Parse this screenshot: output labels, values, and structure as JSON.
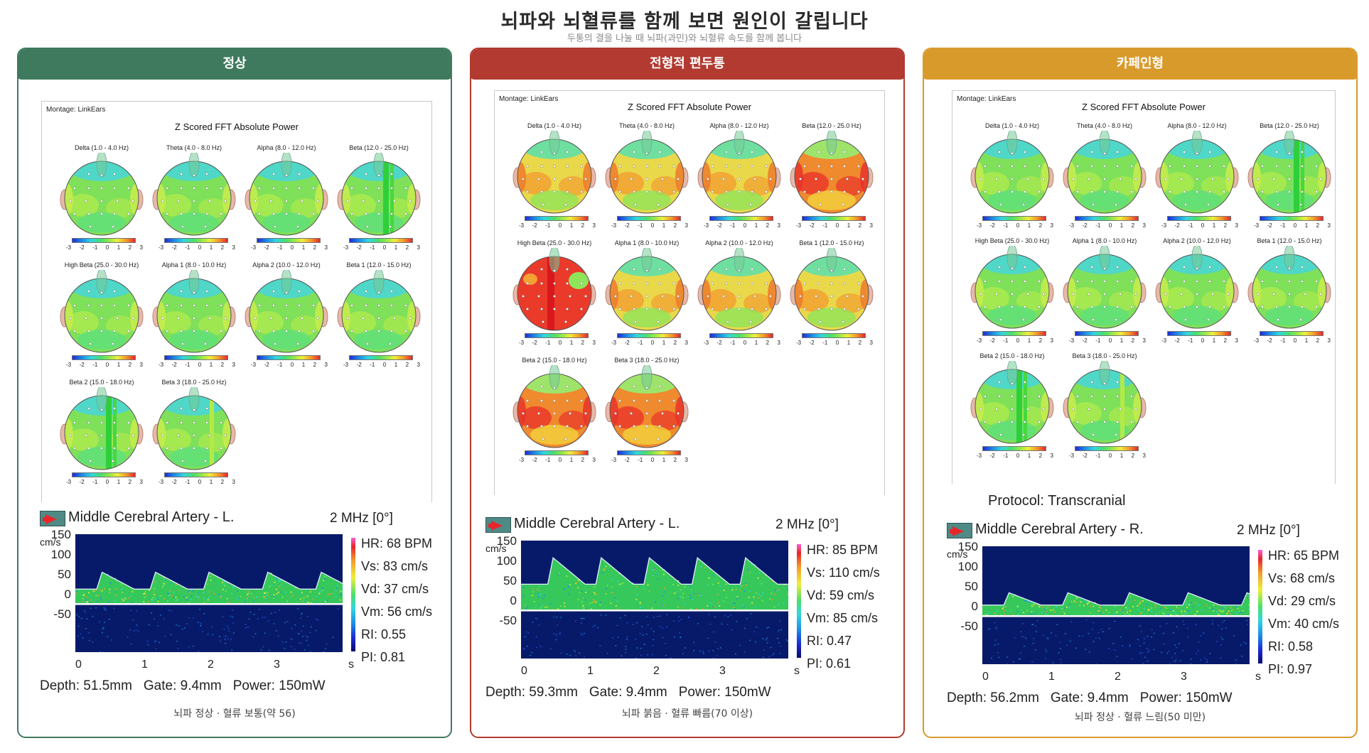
{
  "title": "뇌파와 뇌혈류를 함께 보면 원인이 갈립니다",
  "subtitle": "두통의 결을 나눌 때 뇌파(과민)와 뇌혈류 속도를 함께 봅니다",
  "colors": {
    "normal": "#3f7a5e",
    "migraine": "#b23a30",
    "caffeine": "#d99a2c"
  },
  "qeeg_common": {
    "montage": "Montage:  LinkEars",
    "fft_title": "Z Scored FFT Absolute Power",
    "scale_ticks": [
      "-3",
      "-2",
      "-1",
      "0",
      "1",
      "2",
      "3"
    ],
    "band_labels": [
      "Delta (1.0 - 4.0 Hz)",
      "Theta (4.0 - 8.0 Hz)",
      "Alpha (8.0 - 12.0 Hz)",
      "Beta (12.0 - 25.0 Hz)",
      "High Beta (25.0 - 30.0 Hz)",
      "Alpha 1 (8.0 - 10.0 Hz)",
      "Alpha 2 (10.0 - 12.0 Hz)",
      "Beta 1 (12.0 - 15.0 Hz)",
      "Beta 2 (15.0 - 18.0 Hz)",
      "Beta 3 (18.0 - 25.0 Hz)"
    ]
  },
  "tcd_common": {
    "freq": "2 MHz [0°]",
    "y_unit": "cm/s",
    "y_ticks": [
      "150",
      "100",
      "50",
      "0",
      "-50"
    ],
    "x_ticks": [
      "0",
      "1",
      "2",
      "3",
      "s"
    ]
  },
  "panels": [
    {
      "header": "정상",
      "artery": "Middle Cerebral Artery - L.",
      "protocol": "",
      "stats": {
        "hr": "HR: 68 BPM",
        "vs": "Vs: 83 cm/s",
        "vd": "Vd: 37 cm/s",
        "vm": "Vm: 56 cm/s",
        "ri": "RI: 0.55",
        "pi": "PI: 0.81"
      },
      "depth": "Depth: 51.5mm",
      "gate": "Gate: 9.4mm",
      "power": "Power: 150mW",
      "caption": "뇌파 정상 · 혈류 보통(약 56)",
      "maps": [
        "normal",
        "normal",
        "normal",
        "stripe",
        "normal",
        "normal",
        "normal",
        "normal",
        "stripe",
        "stripe2"
      ]
    },
    {
      "header": "전형적 편두통",
      "artery": "Middle Cerebral Artery - L.",
      "protocol": "",
      "stats": {
        "hr": "HR: 85 BPM",
        "vs": "Vs: 110 cm/s",
        "vd": "Vd: 59 cm/s",
        "vm": "Vm: 85 cm/s",
        "ri": "RI: 0.47",
        "pi": "PI: 0.61"
      },
      "depth": "Depth: 59.3mm",
      "gate": "Gate: 9.4mm",
      "power": "Power: 150mW",
      "caption": "뇌파 붉음 · 혈류 빠름(70 이상)",
      "maps": [
        "warm",
        "warm",
        "warm",
        "hot",
        "hotstripe",
        "warm",
        "warm",
        "warm",
        "hot",
        "hot"
      ]
    },
    {
      "header": "카페인형",
      "artery": "Middle Cerebral Artery - R.",
      "protocol": "Protocol:  Transcranial",
      "stats": {
        "hr": "HR: 65 BPM",
        "vs": "Vs: 68 cm/s",
        "vd": "Vd: 29 cm/s",
        "vm": "Vm: 40 cm/s",
        "ri": "RI: 0.58",
        "pi": "PI: 0.97"
      },
      "depth": "Depth: 56.2mm",
      "gate": "Gate: 9.4mm",
      "power": "Power: 150mW",
      "caption": "뇌파 정상 · 혈류 느림(50 미만)",
      "maps": [
        "normal",
        "normal",
        "normal",
        "stripe",
        "normal",
        "normal",
        "normal",
        "normal",
        "stripe",
        "stripe2"
      ]
    }
  ]
}
